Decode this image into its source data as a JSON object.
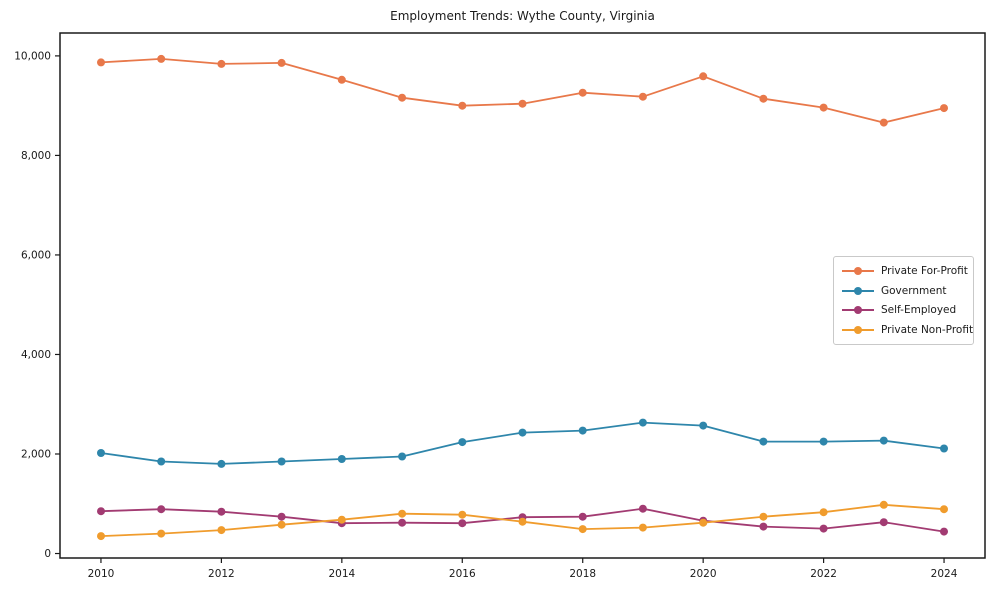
{
  "chart_data": {
    "type": "line",
    "title": "Employment Trends: Wythe County, Virginia",
    "xlabel": "",
    "ylabel": "",
    "grid": false,
    "legend_position": "middle-right",
    "x": [
      2010,
      2011,
      2012,
      2013,
      2014,
      2015,
      2016,
      2017,
      2018,
      2019,
      2020,
      2021,
      2022,
      2023,
      2024
    ],
    "series": [
      {
        "name": "Private For-Profit",
        "color": "#e8784a",
        "values": [
          9870,
          9940,
          9840,
          9860,
          9520,
          9160,
          9000,
          9040,
          9260,
          9180,
          9590,
          9140,
          8960,
          8660,
          8950
        ]
      },
      {
        "name": "Government",
        "color": "#2e86ab",
        "values": [
          2020,
          1850,
          1800,
          1850,
          1900,
          1950,
          2240,
          2430,
          2470,
          2630,
          2570,
          2250,
          2250,
          2270,
          2110
        ]
      },
      {
        "name": "Self-Employed",
        "color": "#a23b72",
        "values": [
          850,
          890,
          840,
          740,
          610,
          620,
          610,
          730,
          740,
          900,
          660,
          540,
          500,
          630,
          440
        ]
      },
      {
        "name": "Private Non-Profit",
        "color": "#f09c2d",
        "values": [
          350,
          400,
          470,
          580,
          680,
          800,
          780,
          640,
          490,
          520,
          620,
          740,
          830,
          980,
          890
        ]
      }
    ],
    "xlim": [
      2009.32,
      2024.68
    ],
    "ylim": [
      -90,
      10460
    ],
    "x_tick_labels": [
      "2010",
      "2012",
      "2014",
      "2016",
      "2018",
      "2020",
      "2022",
      "2024"
    ],
    "y_tick_labels": [
      "0",
      "2,000",
      "4,000",
      "6,000",
      "8,000",
      "10,000"
    ]
  }
}
